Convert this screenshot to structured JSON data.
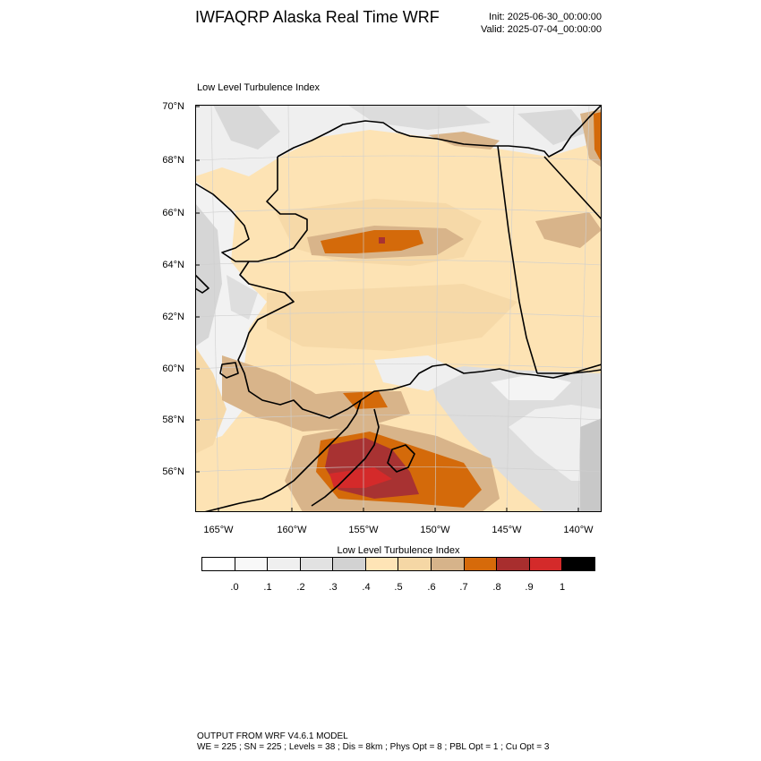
{
  "header": {
    "title": "IWFAQRP Alaska Real Time WRF",
    "init": "Init: 2025-06-30_00:00:00",
    "valid": "Valid: 2025-07-04_00:00:00"
  },
  "map": {
    "subtitle": "Low Level Turbulence Index",
    "lat_labels": [
      "70°N",
      "68°N",
      "66°N",
      "64°N",
      "62°N",
      "60°N",
      "58°N",
      "56°N"
    ],
    "lon_labels": [
      "165°W",
      "160°W",
      "155°W",
      "150°W",
      "145°W",
      "140°W"
    ],
    "colors": {
      "ocean_light": "#f2f2f2",
      "ocean_mid": "#dcdcdc",
      "ocean_gray": "#cfcfcf",
      "land_low": "#fde3b4",
      "land_tan": "#f6d9a8",
      "tan_dark": "#d8b48a",
      "orange": "#d46a0a",
      "dark_red": "#a83232",
      "red": "#d42a2a"
    }
  },
  "colorbar": {
    "title": "Low Level Turbulence Index",
    "colors": [
      "#ffffff",
      "#f8f8f8",
      "#efefef",
      "#e2e2e2",
      "#d2d2d2",
      "#fee4b6",
      "#f5d7a5",
      "#d6b38a",
      "#d66a0a",
      "#a82e2e",
      "#d42a2a",
      "#000000"
    ],
    "tick_labels": [
      ".0",
      ".1",
      ".2",
      ".3",
      ".4",
      ".5",
      ".6",
      ".7",
      ".8",
      ".9",
      "1"
    ]
  },
  "footer": {
    "model": "OUTPUT FROM WRF V4.6.1 MODEL",
    "params": "WE = 225 ; SN = 225 ; Levels = 38 ; Dis = 8km ; Phys Opt = 8 ; PBL Opt = 1 ; Cu Opt = 3"
  }
}
